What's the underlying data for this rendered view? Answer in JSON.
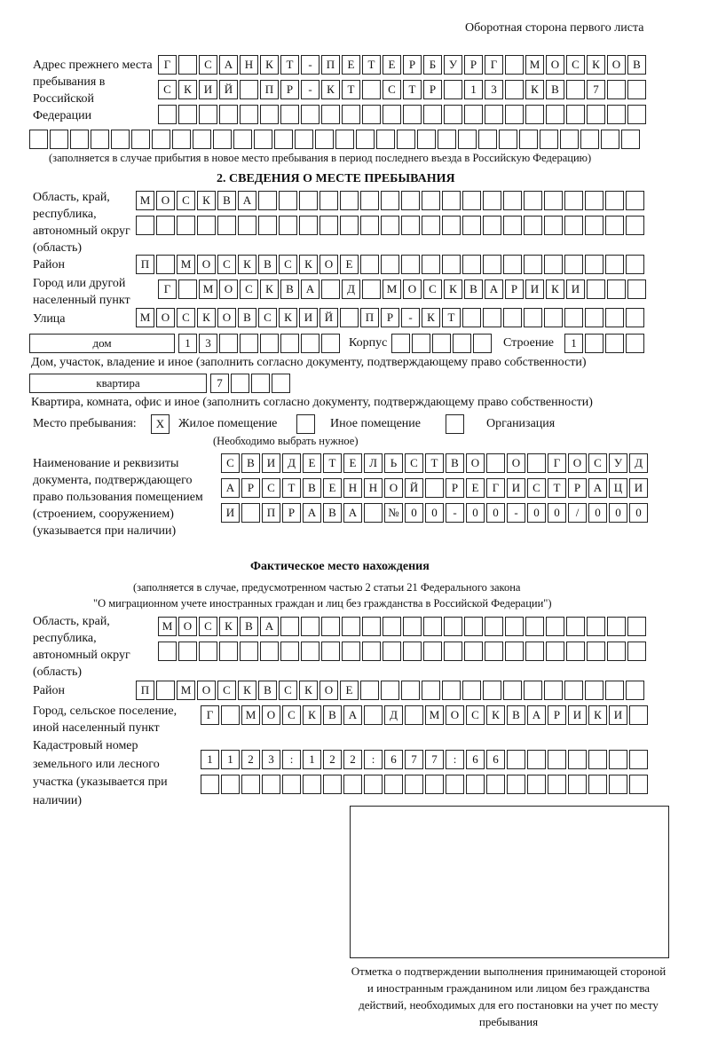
{
  "header": {
    "side_note": "Оборотная сторона первого листа"
  },
  "previous_address": {
    "label": "Адрес прежнего места пребывания в Российской Федерации",
    "rows": [
      "Г САНКТ-ПЕТЕРБУРГ МОСКОВ",
      "СКИЙ ПР-КТ СТР 13 КВ 7",
      "",
      ""
    ],
    "note": "(заполняется в случае прибытия в новое место пребывания в период последнего въезда в Российскую Федерацию)"
  },
  "section2": {
    "title": "2. СВЕДЕНИЯ О МЕСТЕ ПРЕБЫВАНИЯ",
    "region_label": "Область, край, республика, автономный округ (область)",
    "region_rows": [
      "МОСКВА",
      ""
    ],
    "district_label": "Район",
    "district": "П МОСКВСКОЕ",
    "city_label": "Город или другой населенный пункт",
    "city": "Г МОСКВА Д МОСКВАРИКИ",
    "street_label": "Улица",
    "street": "МОСКОВСКИЙ ПР-КТ",
    "house_type": "дом",
    "house": "13",
    "building_label": "Корпус",
    "building": "",
    "structure_label": "Строение",
    "structure": "1",
    "house_note": "Дом, участок, владение и иное (заполнить согласно документу, подтверждающему право собственности)",
    "apt_type": "квартира",
    "apt": "7",
    "apt_note": "Квартира, комната, офис и иное (заполнить согласно документу, подтверждающему право собственности)",
    "stay_label": "Место пребывания:",
    "options": [
      {
        "label": "Жилое помещение",
        "mark": "X"
      },
      {
        "label": "Иное помещение",
        "mark": ""
      },
      {
        "label": "Организация",
        "mark": ""
      }
    ],
    "choose_note": "(Необходимо выбрать нужное)",
    "doc_label": "Наименование и реквизиты документа, подтверждающего право пользования помещением (строением, сооружением) (указывается при наличии)",
    "doc_rows": [
      "СВИДЕТЕЛЬСТВО О ГОСУД",
      "АРСТВЕННОЙ РЕГИСТРАЦИ",
      "И ПРАВА №00-00-00/000"
    ]
  },
  "actual": {
    "title": "Фактическое место нахождения",
    "note1": "(заполняется в случае, предусмотренном частью 2 статьи 21 Федерального закона",
    "note2": "\"О миграционном учете иностранных граждан и лиц без гражданства в Российской Федерации\")",
    "region_label": "Область, край, республика, автономный округ (область)",
    "region_rows": [
      "МОСКВА",
      ""
    ],
    "district_label": "Район",
    "district": "П МОСКВСКОЕ",
    "city_label": "Город, сельское поселение, иной населенный пункт",
    "city": "Г МОСКВА Д МОСКВАРИКИ",
    "cadastre_label": "Кадастровый номер земельного или лесного участка (указывается при наличии)",
    "cadastre_rows": [
      "1123:122:677:66",
      ""
    ]
  },
  "stamp_caption": "Отметка о подтверждении выполнения принимающей стороной и иностранным гражданином или лицом без гражданства действий, необходимых для его постановки на учет по месту пребывания"
}
